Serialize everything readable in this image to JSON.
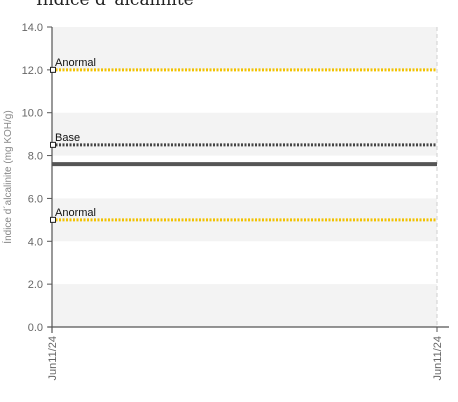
{
  "chart_data": {
    "type": "line",
    "title": "Índice d´alcalinite",
    "ylabel": "Índice d´alcalinite (mg KOH/g)",
    "xlabel": "",
    "ylim": [
      0,
      14
    ],
    "yticks": [
      "0.0",
      "2.0",
      "4.0",
      "6.0",
      "8.0",
      "10.0",
      "12.0",
      "14.0"
    ],
    "x_tick_labels": [
      "Jun11/24",
      "Jun11/24"
    ],
    "grid": true,
    "series": [
      {
        "name": "",
        "values": [
          7.6,
          7.6
        ],
        "color": "#555555"
      }
    ],
    "reference_lines": [
      {
        "label": "Anormal",
        "value": 12.0,
        "color": "#f2c200",
        "style": "dotted"
      },
      {
        "label": "Base",
        "value": 8.5,
        "color": "#444444",
        "style": "dotted"
      },
      {
        "label": "Anormal",
        "value": 5.0,
        "color": "#f2c200",
        "style": "dotted"
      }
    ]
  }
}
